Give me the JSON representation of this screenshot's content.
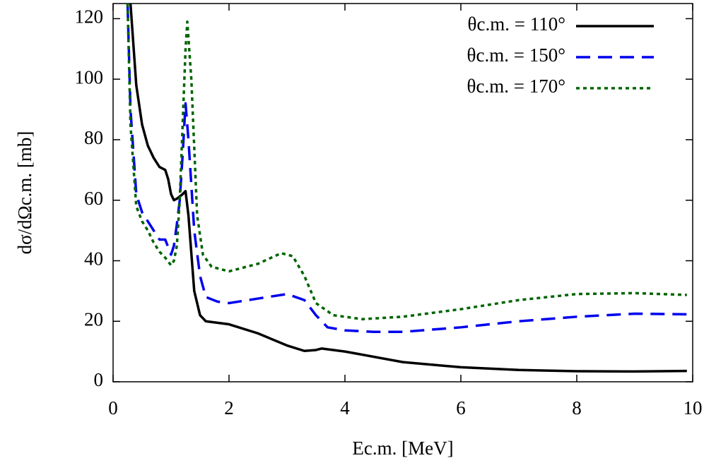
{
  "chart_data": {
    "type": "line",
    "xlabel": "Ec.m. [MeV]",
    "ylabel": "dσ/dΩc.m. [mb]",
    "xlim": [
      0,
      10
    ],
    "xticks": [
      0,
      2,
      4,
      6,
      8,
      10
    ],
    "ylim": [
      0,
      125
    ],
    "yticks": [
      0,
      20,
      40,
      60,
      80,
      100,
      120
    ],
    "legend": "upper right",
    "series": [
      {
        "name": "θc.m. = 110°",
        "color": "#000000",
        "dash": "solid",
        "x": [
          0.3,
          0.4,
          0.5,
          0.6,
          0.7,
          0.8,
          0.9,
          0.95,
          1.0,
          1.05,
          1.1,
          1.2,
          1.25,
          1.3,
          1.4,
          1.5,
          1.6,
          2.0,
          2.5,
          3.0,
          3.3,
          3.5,
          3.6,
          4.0,
          5.0,
          6.0,
          7.0,
          8.0,
          9.0,
          9.9
        ],
        "values": [
          125,
          98,
          85,
          78,
          74,
          71,
          70,
          67,
          62,
          60,
          60.5,
          62,
          63,
          55,
          30,
          22,
          20,
          19,
          16,
          12,
          10.2,
          10.5,
          11,
          10,
          6.5,
          4.8,
          3.9,
          3.5,
          3.4,
          3.6
        ]
      },
      {
        "name": "θc.m. = 150°",
        "color": "#0000ee",
        "dash": "dashed",
        "x": [
          0.25,
          0.3,
          0.4,
          0.5,
          0.6,
          0.7,
          0.8,
          0.9,
          1.0,
          1.05,
          1.1,
          1.15,
          1.2,
          1.25,
          1.3,
          1.4,
          1.5,
          1.6,
          1.8,
          2.0,
          2.5,
          3.0,
          3.3,
          3.5,
          3.7,
          4.0,
          4.5,
          5.0,
          6.0,
          7.0,
          8.0,
          9.0,
          9.9
        ],
        "values": [
          125,
          90,
          62,
          56,
          53,
          50,
          47,
          47,
          42,
          45,
          52,
          60,
          75,
          92,
          80,
          50,
          35,
          28,
          26.5,
          26,
          27.5,
          29,
          27,
          22,
          18,
          17,
          16.5,
          16.5,
          18,
          20,
          21.5,
          22.5,
          22.3
        ]
      },
      {
        "name": "θc.m. = 170°",
        "color": "#006400",
        "dash": "dotted",
        "x": [
          0.25,
          0.3,
          0.4,
          0.5,
          0.6,
          0.7,
          0.8,
          0.9,
          1.0,
          1.05,
          1.1,
          1.15,
          1.2,
          1.25,
          1.28,
          1.35,
          1.45,
          1.55,
          1.7,
          2.0,
          2.5,
          2.9,
          3.1,
          3.3,
          3.5,
          3.8,
          4.3,
          5.0,
          6.0,
          7.0,
          8.0,
          9.0,
          9.9
        ],
        "values": [
          125,
          85,
          58,
          53,
          50,
          46,
          43,
          41,
          38.5,
          40,
          45,
          60,
          85,
          110,
          119,
          100,
          55,
          42,
          38,
          36.5,
          39,
          42.5,
          41.5,
          35,
          26,
          22,
          20.7,
          21.5,
          24,
          27,
          29,
          29.3,
          28.7
        ]
      }
    ]
  }
}
